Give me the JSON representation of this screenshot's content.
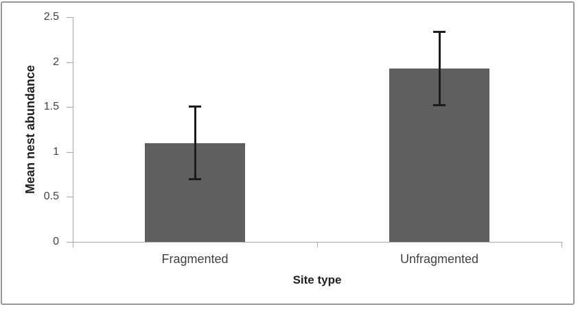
{
  "chart_data": {
    "type": "bar",
    "categories": [
      "Fragmented",
      "Unfragmented"
    ],
    "values": [
      1.1,
      1.93
    ],
    "errors": [
      0.41,
      0.41
    ],
    "error_ranges": [
      [
        0.69,
        1.51
      ],
      [
        1.52,
        2.34
      ]
    ],
    "title": "",
    "xlabel": "Site type",
    "ylabel": "Mean nest abundance",
    "ylim": [
      0,
      2.5
    ],
    "yticks": [
      0,
      0.5,
      1,
      1.5,
      2,
      2.5
    ],
    "grid": false,
    "legend": "none",
    "error_bar_style": "symmetric with caps"
  },
  "colors": {
    "bar": "#5f5f5f",
    "error_bar": "#1c1c1c",
    "axis": "#a6a6a6",
    "tick_text": "#404040",
    "title_text": "#1f1f1f",
    "frame_border": "#979797",
    "background": "#ffffff"
  }
}
